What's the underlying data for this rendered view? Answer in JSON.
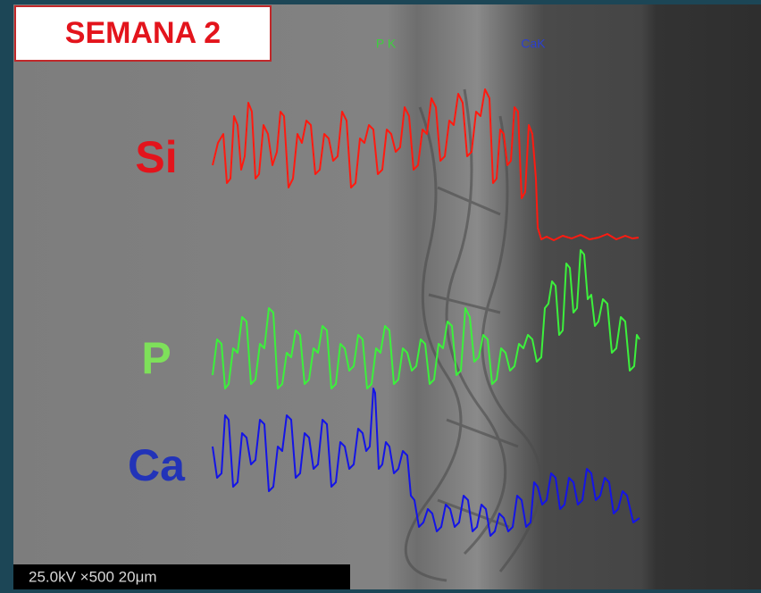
{
  "header": {
    "title": "SEMANA 2"
  },
  "traces": {
    "si": "Si",
    "p": "P",
    "ca": "Ca"
  },
  "image_labels": {
    "pk": "P K",
    "cak": "CaK"
  },
  "scale_bar": {
    "text": "25.0kV ×500 20μm"
  }
}
